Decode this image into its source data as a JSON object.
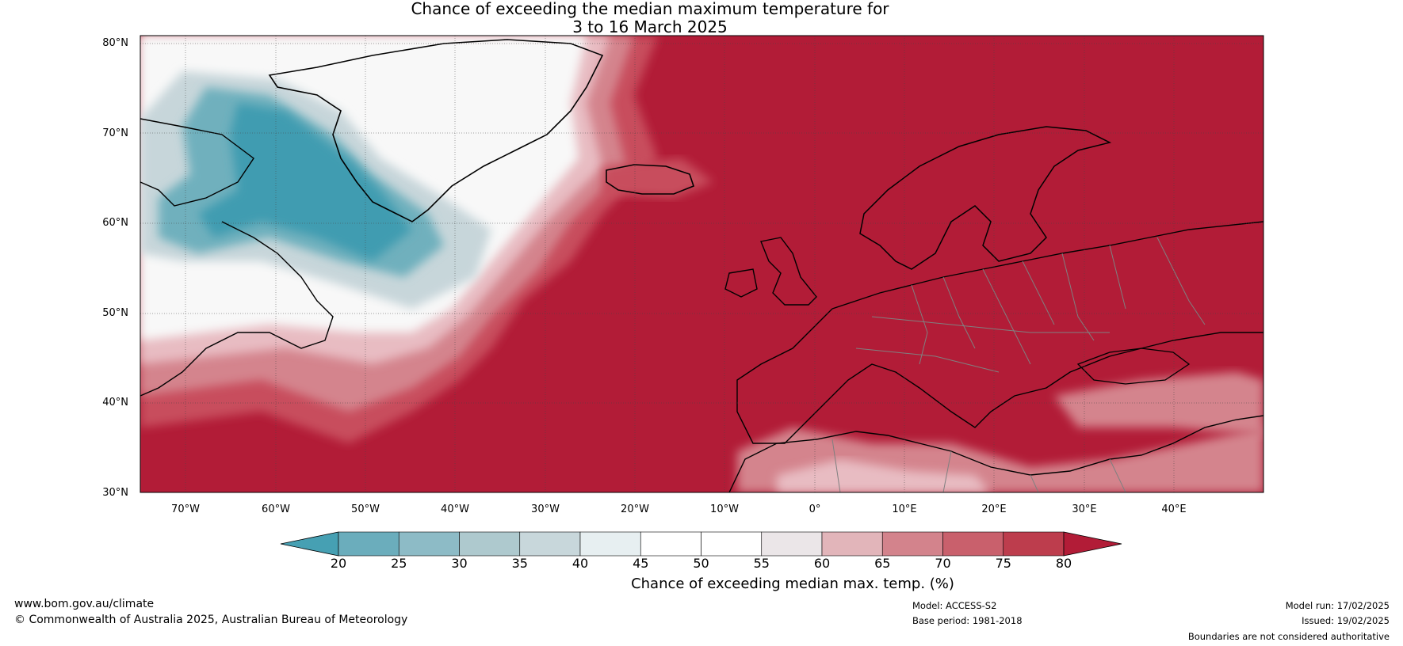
{
  "header": {
    "title_line1": "Chance of exceeding the median maximum temperature for",
    "title_line2": "3 to 16 March 2025"
  },
  "map": {
    "lat_labels": [
      "80°N",
      "70°N",
      "60°N",
      "50°N",
      "40°N",
      "30°N"
    ],
    "lon_labels": [
      "70°W",
      "60°W",
      "50°W",
      "40°W",
      "30°W",
      "20°W",
      "10°W",
      "0°",
      "10°E",
      "20°E",
      "30°E",
      "40°E"
    ],
    "colors": {
      "hot": "#b21c37",
      "warm": "#c84d5d",
      "mild_warm": "#d4848d",
      "pale": "#e8bcc2",
      "neutral": "#ffffff",
      "cool": "#c7d6da",
      "cold": "#6fb0bd",
      "coldest": "#3f9cb1"
    }
  },
  "colorbar": {
    "ticks": [
      "20",
      "25",
      "30",
      "35",
      "40",
      "45",
      "50",
      "55",
      "60",
      "65",
      "70",
      "75",
      "80"
    ],
    "colors": [
      "#46a0b3",
      "#6badbc",
      "#8dbbc6",
      "#aec9ce",
      "#c8d7db",
      "#e7eff1",
      "#ffffff",
      "#ffffff",
      "#ebe6e8",
      "#e2b5ba",
      "#d3838c",
      "#c9606c",
      "#bd3d4d",
      "#b21c37"
    ],
    "title": "Chance of exceeding median max. temp. (%)"
  },
  "footer": {
    "website": "www.bom.gov.au/climate",
    "copyright": "© Commonwealth of Australia 2025, Australian Bureau of Meteorology",
    "model": "Model: ACCESS-S2",
    "base_period": "Base period: 1981-2018",
    "model_run": "Model run: 17/02/2025",
    "issued": "Issued: 19/02/2025",
    "disclaimer": "Boundaries are not considered authoritative"
  }
}
